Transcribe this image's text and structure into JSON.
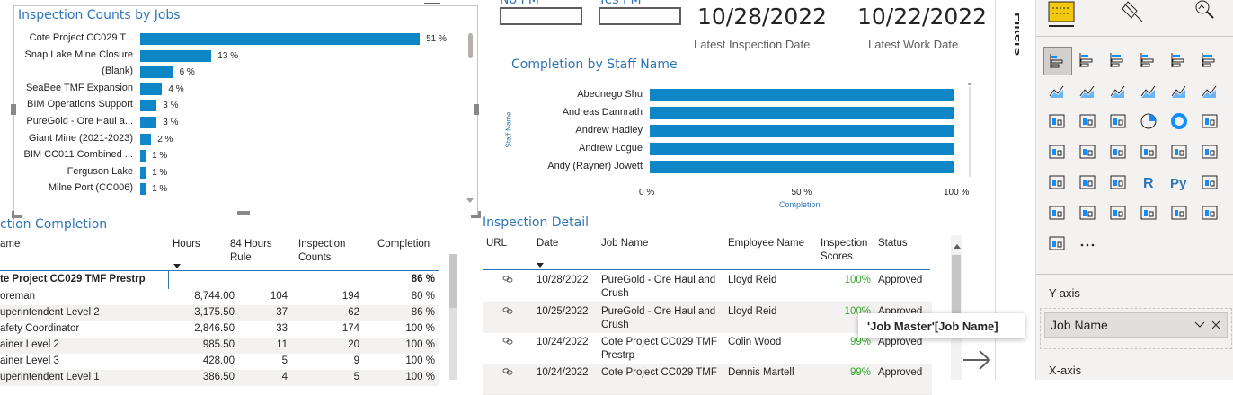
{
  "jobs_chart": {
    "title": "Inspection Counts by Jobs",
    "chart_data": {
      "type": "bar",
      "orientation": "horizontal",
      "title": "Inspection Counts by Jobs",
      "categories": [
        "Cote Project CC029 T...",
        "Snap Lake Mine Closure",
        "(Blank)",
        "SeaBee TMF Expansion",
        "BIM Operations Support",
        "PureGold - Ore Haul a...",
        "Giant Mine (2021-2023)",
        "BIM CC011 Combined ...",
        "Ferguson Lake",
        "Milne Port (CC006)"
      ],
      "values": [
        51,
        13,
        6,
        4,
        3,
        3,
        2,
        1,
        1,
        1
      ],
      "value_labels": [
        "51 %",
        "13 %",
        "6 %",
        "4 %",
        "3 %",
        "3 %",
        "2 %",
        "1 %",
        "1 %",
        "1 %"
      ],
      "xlim": [
        0,
        60
      ]
    }
  },
  "cards": {
    "no_pm_label": "No PM",
    "yes_pm_label": "Yes PM",
    "latest_inspection_value": "10/28/2022",
    "latest_inspection_label": "Latest Inspection Date",
    "latest_work_value": "10/22/2022",
    "latest_work_label": "Latest Work Date"
  },
  "staff_chart": {
    "title": "Completion by Staff Name",
    "chart_data": {
      "type": "bar",
      "orientation": "horizontal",
      "title": "Completion by Staff Name",
      "categories": [
        "Abednego Shu",
        "Andreas Dannrath",
        "Andrew Hadley",
        "Andrew Logue",
        "Andy (Rayner) Jowett"
      ],
      "values": [
        100,
        100,
        100,
        100,
        100
      ],
      "xlabel": "Completion",
      "ylabel": "Staff Name",
      "xticks": [
        "0 %",
        "50 %",
        "100 %"
      ],
      "xlim": [
        0,
        100
      ]
    }
  },
  "completion_table": {
    "title": "ction Completion",
    "headers": [
      "ame",
      "Hours",
      "84 Hours Rule",
      "Inspection Counts",
      "Completion"
    ],
    "group": {
      "name": "te Project CC029 TMF Prestrp",
      "completion": "86 %"
    },
    "rows": [
      {
        "name": "oreman",
        "hours": "8,744.00",
        "rule": "104",
        "counts": "194",
        "completion": "80 %"
      },
      {
        "name": "uperintendent Level 2",
        "hours": "3,175.50",
        "rule": "37",
        "counts": "62",
        "completion": "86 %"
      },
      {
        "name": "afety Coordinator",
        "hours": "2,846.50",
        "rule": "33",
        "counts": "174",
        "completion": "100 %"
      },
      {
        "name": "ainer Level 2",
        "hours": "985.50",
        "rule": "11",
        "counts": "20",
        "completion": "100 %"
      },
      {
        "name": "ainer Level 3",
        "hours": "428.00",
        "rule": "5",
        "counts": "9",
        "completion": "100 %"
      },
      {
        "name": "uperintendent Level 1",
        "hours": "386.50",
        "rule": "4",
        "counts": "5",
        "completion": "100 %"
      }
    ]
  },
  "detail_table": {
    "title": "Inspection Detail",
    "headers": [
      "URL",
      "Date",
      "Job Name",
      "Employee Name",
      "Inspection Scores",
      "Status"
    ],
    "rows": [
      {
        "date": "10/28/2022",
        "job1": "PureGold - Ore Haul and",
        "job2": "Crush",
        "employee": "Lloyd Reid",
        "score": "100%",
        "status": "Approved"
      },
      {
        "date": "10/25/2022",
        "job1": "PureGold - Ore Haul and",
        "job2": "Crush",
        "employee": "Lloyd Reid",
        "score": "100%",
        "status": "Approved"
      },
      {
        "date": "10/24/2022",
        "job1": "Cote Project CC029 TMF",
        "job2": "Prestrp",
        "employee": "Colin Wood",
        "score": "99%",
        "status": "Approved"
      },
      {
        "date": "10/24/2022",
        "job1": "Cote Project CC029 TMF",
        "job2": "",
        "employee": "Dennis Martell",
        "score": "99%",
        "status": "Approved"
      }
    ]
  },
  "pane": {
    "filters_label": "Filters",
    "yaxis_label": "Y-axis",
    "yaxis_field": "Job Name",
    "xaxis_label": "X-axis",
    "tooltip": "'Job Master'[Job Name]",
    "more_label": "..."
  }
}
